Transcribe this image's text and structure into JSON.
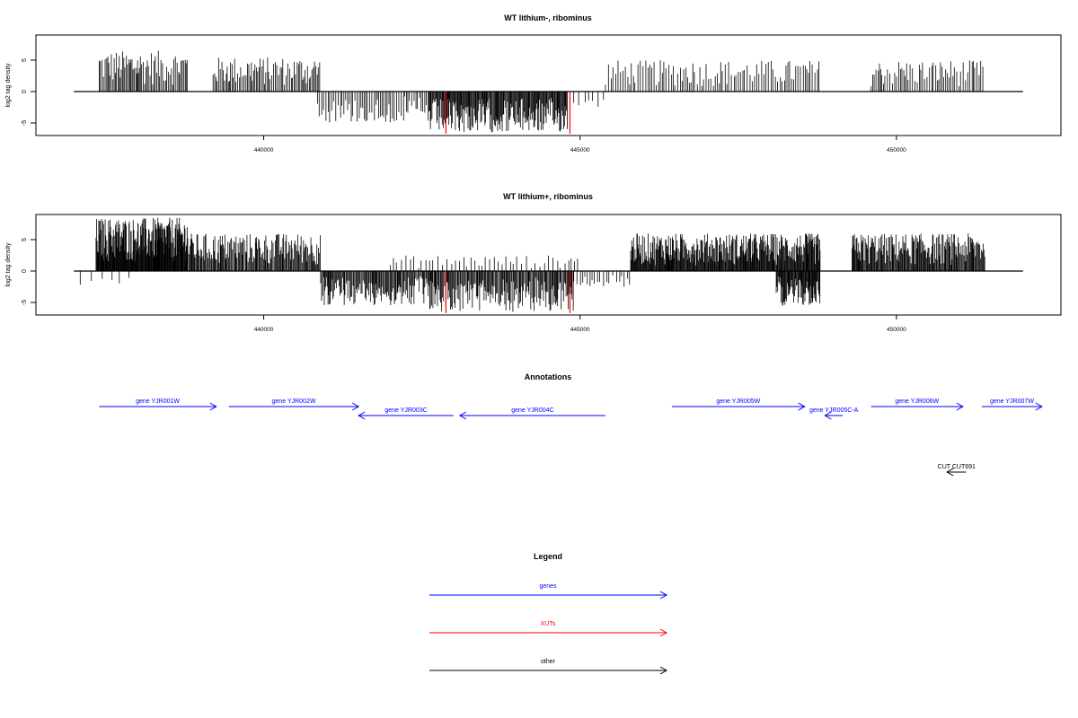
{
  "panels": [
    {
      "title": "WT lithium-, ribominus",
      "ylabel": "log2 tag density",
      "ylim": [
        -7,
        9
      ],
      "yticks": [
        -5,
        0,
        5
      ],
      "xlim": [
        436400,
        452600
      ],
      "xticks": [
        "440000",
        "445000",
        "450000"
      ]
    },
    {
      "title": "WT lithium+, ribominus",
      "ylabel": "log2 tag density",
      "ylim": [
        -7,
        9
      ],
      "yticks": [
        -5,
        0,
        5
      ],
      "xlim": [
        436400,
        452600
      ],
      "xticks": [
        "440000",
        "445000",
        "450000"
      ]
    }
  ],
  "chart_data": [
    {
      "type": "bar",
      "title": "WT lithium-, ribominus",
      "ylabel": "log2 tag density",
      "xlim": [
        436400,
        452600
      ],
      "ylim": [
        -7,
        9
      ],
      "baseline_range": [
        437000,
        452000
      ],
      "plus_strand_regions": [
        {
          "start": 437400,
          "end": 438800,
          "max": 6.5,
          "step": 20
        },
        {
          "start": 439200,
          "end": 440900,
          "max": 5.5,
          "step": 22
        },
        {
          "start": 445400,
          "end": 448800,
          "max": 5.0,
          "step": 35
        },
        {
          "start": 449600,
          "end": 451400,
          "max": 5.0,
          "step": 30
        }
      ],
      "minus_strand_regions": [
        {
          "start": 440850,
          "end": 442600,
          "max": 5.0,
          "step": 30
        },
        {
          "start": 442600,
          "end": 444800,
          "max": 6.5,
          "step": 12
        },
        {
          "start": 444900,
          "end": 445400,
          "max": 2.5,
          "step": 80
        }
      ],
      "highlighted_xuts": [
        {
          "x": 442880,
          "value": -6.7
        },
        {
          "x": 444840,
          "value": -6.7
        }
      ]
    },
    {
      "type": "bar",
      "title": "WT lithium+, ribominus",
      "ylabel": "log2 tag density",
      "xlim": [
        436400,
        452600
      ],
      "ylim": [
        -7,
        9
      ],
      "baseline_range": [
        437000,
        452000
      ],
      "plus_strand_regions": [
        {
          "start": 437350,
          "end": 438800,
          "max": 8.5,
          "step": 8
        },
        {
          "start": 438800,
          "end": 440900,
          "max": 6.0,
          "step": 14
        },
        {
          "start": 442000,
          "end": 445000,
          "max": 2.5,
          "step": 60
        },
        {
          "start": 445800,
          "end": 448800,
          "max": 6.0,
          "step": 10
        },
        {
          "start": 449300,
          "end": 451400,
          "max": 6.0,
          "step": 12
        }
      ],
      "minus_strand_regions": [
        {
          "start": 440900,
          "end": 442600,
          "max": 5.5,
          "step": 14
        },
        {
          "start": 442600,
          "end": 444900,
          "max": 6.5,
          "step": 14
        },
        {
          "start": 444900,
          "end": 445800,
          "max": 2.5,
          "step": 45
        },
        {
          "start": 448100,
          "end": 448800,
          "max": 5.5,
          "step": 10
        },
        {
          "start": 437100,
          "end": 437900,
          "max": 2.5,
          "step": 150
        }
      ],
      "highlighted_xuts": [
        {
          "x": 442880,
          "value": -6.7
        },
        {
          "x": 444840,
          "value": -6.7
        }
      ]
    }
  ],
  "annotations": {
    "title": "Annotations",
    "features": [
      {
        "label": "gene YJR001W",
        "start": 437400,
        "end": 439250,
        "strand": "+",
        "row": 0,
        "category": "genes"
      },
      {
        "label": "gene YJR002W",
        "start": 439450,
        "end": 441500,
        "strand": "+",
        "row": 0,
        "category": "genes"
      },
      {
        "label": "gene YJR003C",
        "start": 441500,
        "end": 443000,
        "strand": "-",
        "row": 1,
        "category": "genes"
      },
      {
        "label": "gene YJR004C",
        "start": 443100,
        "end": 445400,
        "strand": "-",
        "row": 1,
        "category": "genes"
      },
      {
        "label": "gene YJR005W",
        "start": 446450,
        "end": 448550,
        "strand": "+",
        "row": 0,
        "category": "genes"
      },
      {
        "label": "gene YJR005C-A",
        "start": 448870,
        "end": 449150,
        "strand": "-",
        "row": 1,
        "category": "genes"
      },
      {
        "label": "gene YJR006W",
        "start": 449600,
        "end": 451050,
        "strand": "+",
        "row": 0,
        "category": "genes"
      },
      {
        "label": "gene YJR007W",
        "start": 451350,
        "end": 452300,
        "strand": "+",
        "row": 0,
        "category": "genes"
      },
      {
        "label": "CUT CUT691",
        "start": 450800,
        "end": 451100,
        "strand": "-",
        "row": 3,
        "category": "other"
      }
    ]
  },
  "legend": {
    "title": "Legend",
    "items": [
      {
        "label": "genes",
        "color": "#0000ff"
      },
      {
        "label": "XUTs",
        "color": "#ff0000"
      },
      {
        "label": "other",
        "color": "#000000"
      }
    ]
  },
  "colors": {
    "bars": "#000000",
    "xut_highlight": "#ff0000",
    "genes": "#0000ff",
    "other": "#000000"
  }
}
